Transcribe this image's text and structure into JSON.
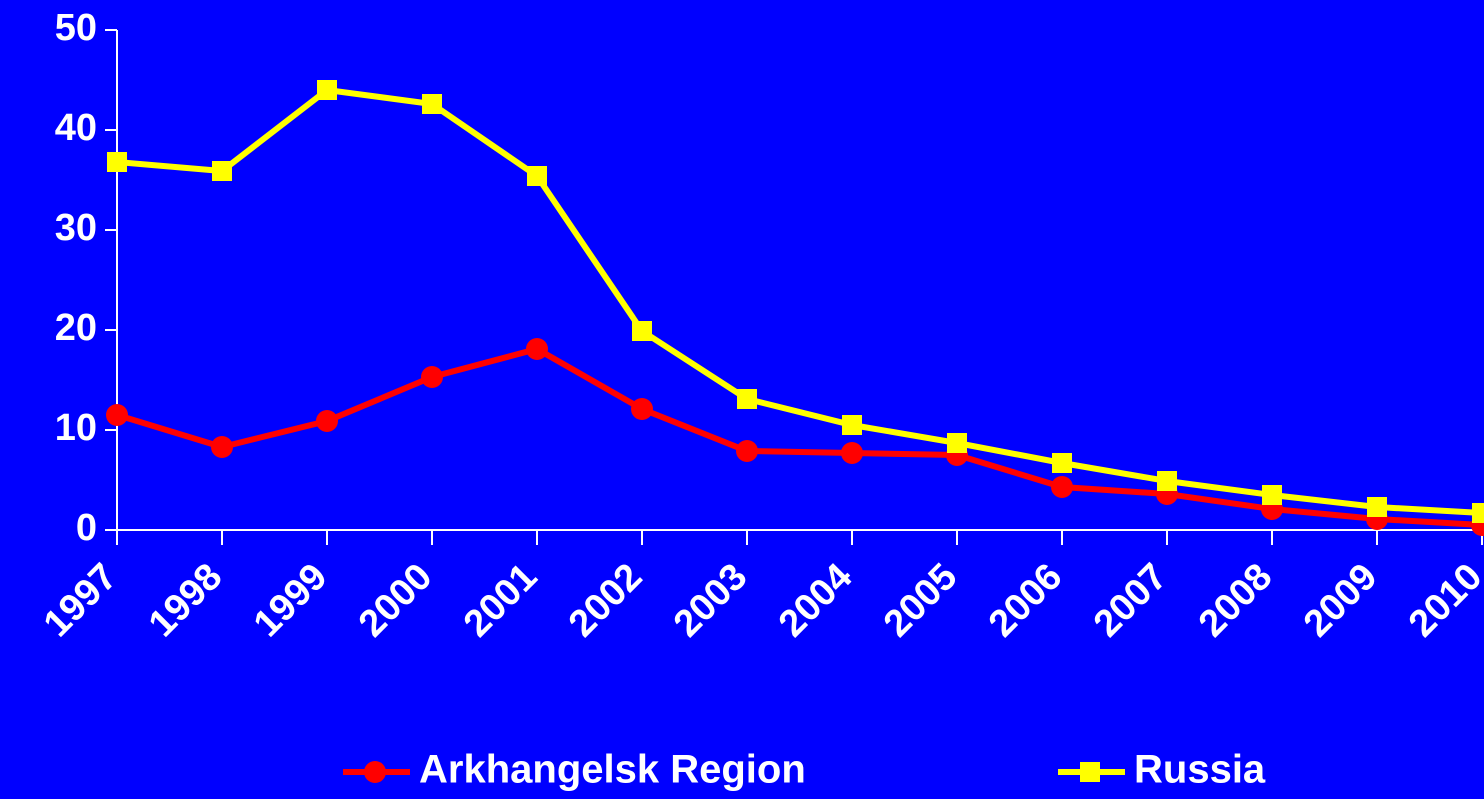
{
  "chart_data": {
    "type": "line",
    "categories": [
      "1997",
      "1998",
      "1999",
      "2000",
      "2001",
      "2002",
      "2003",
      "2004",
      "2005",
      "2006",
      "2007",
      "2008",
      "2009",
      "2010"
    ],
    "series": [
      {
        "name": "Arkhangelsk Region",
        "color": "#ff0000",
        "marker": "circle",
        "values": [
          11.5,
          8.3,
          10.9,
          15.3,
          18.1,
          12.1,
          7.9,
          7.7,
          7.5,
          4.3,
          3.6,
          2.1,
          1.1,
          0.5
        ]
      },
      {
        "name": "Russia",
        "color": "#ffff00",
        "marker": "square",
        "values": [
          36.8,
          35.9,
          44.0,
          42.6,
          35.4,
          19.9,
          13.1,
          10.5,
          8.7,
          6.7,
          4.9,
          3.5,
          2.3,
          1.7
        ]
      }
    ],
    "ylim": [
      0,
      50
    ],
    "yticks": [
      0,
      10,
      20,
      30,
      40,
      50
    ],
    "grid": false,
    "legend": "bottom"
  }
}
